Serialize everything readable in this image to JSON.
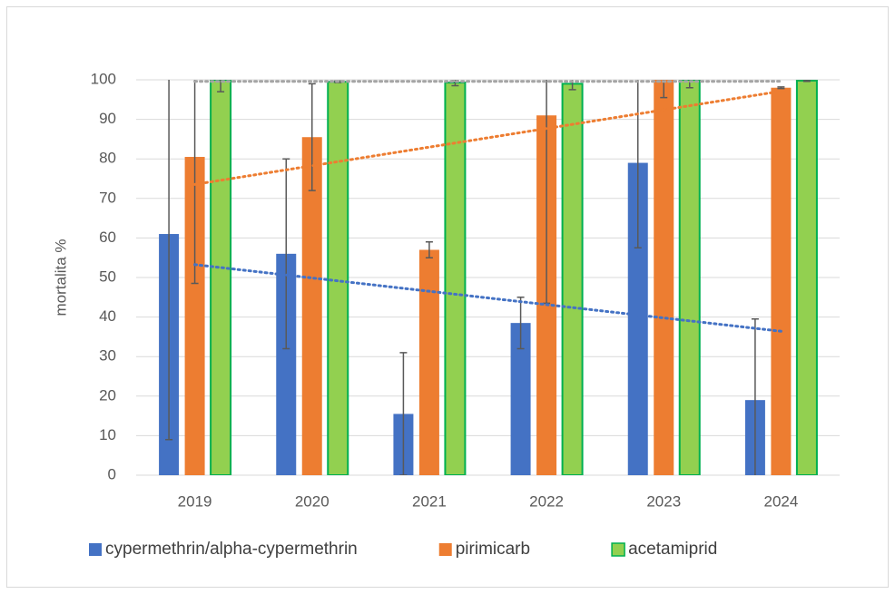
{
  "chart_data": {
    "type": "bar",
    "ylabel": "mortalita %",
    "categories": [
      "2019",
      "2020",
      "2021",
      "2022",
      "2023",
      "2024"
    ],
    "ylim": [
      0,
      100
    ],
    "yticks": [
      0,
      10,
      20,
      30,
      40,
      50,
      60,
      70,
      80,
      90,
      100
    ],
    "grid": true,
    "legend": "bottom",
    "series": [
      {
        "name": "cypermethrin/alpha-cypermethrin",
        "color": "#4472c4",
        "values": [
          61,
          56,
          15.5,
          38.5,
          79,
          19
        ],
        "errors": [
          52,
          24,
          15.5,
          6.5,
          21.5,
          20.5
        ],
        "trendline": "linear",
        "trend_color": "#4472c4"
      },
      {
        "name": "pirimicarb",
        "color": "#ed7d31",
        "values": [
          80.5,
          85.5,
          57,
          91,
          100,
          98
        ],
        "errors": [
          32,
          13.5,
          2,
          47.5,
          4.5,
          0.2
        ],
        "trendline": "linear",
        "trend_color": "#ed7d31"
      },
      {
        "name": "acetamiprid",
        "color": "#92d050",
        "edgecolor": "#00b050",
        "values": [
          100,
          99.5,
          99.3,
          99,
          100,
          99.8
        ],
        "errors": [
          3,
          0.2,
          0.8,
          1.5,
          2,
          0.2
        ],
        "trendline": "linear",
        "trend_color": "#a5a5a5"
      }
    ]
  }
}
